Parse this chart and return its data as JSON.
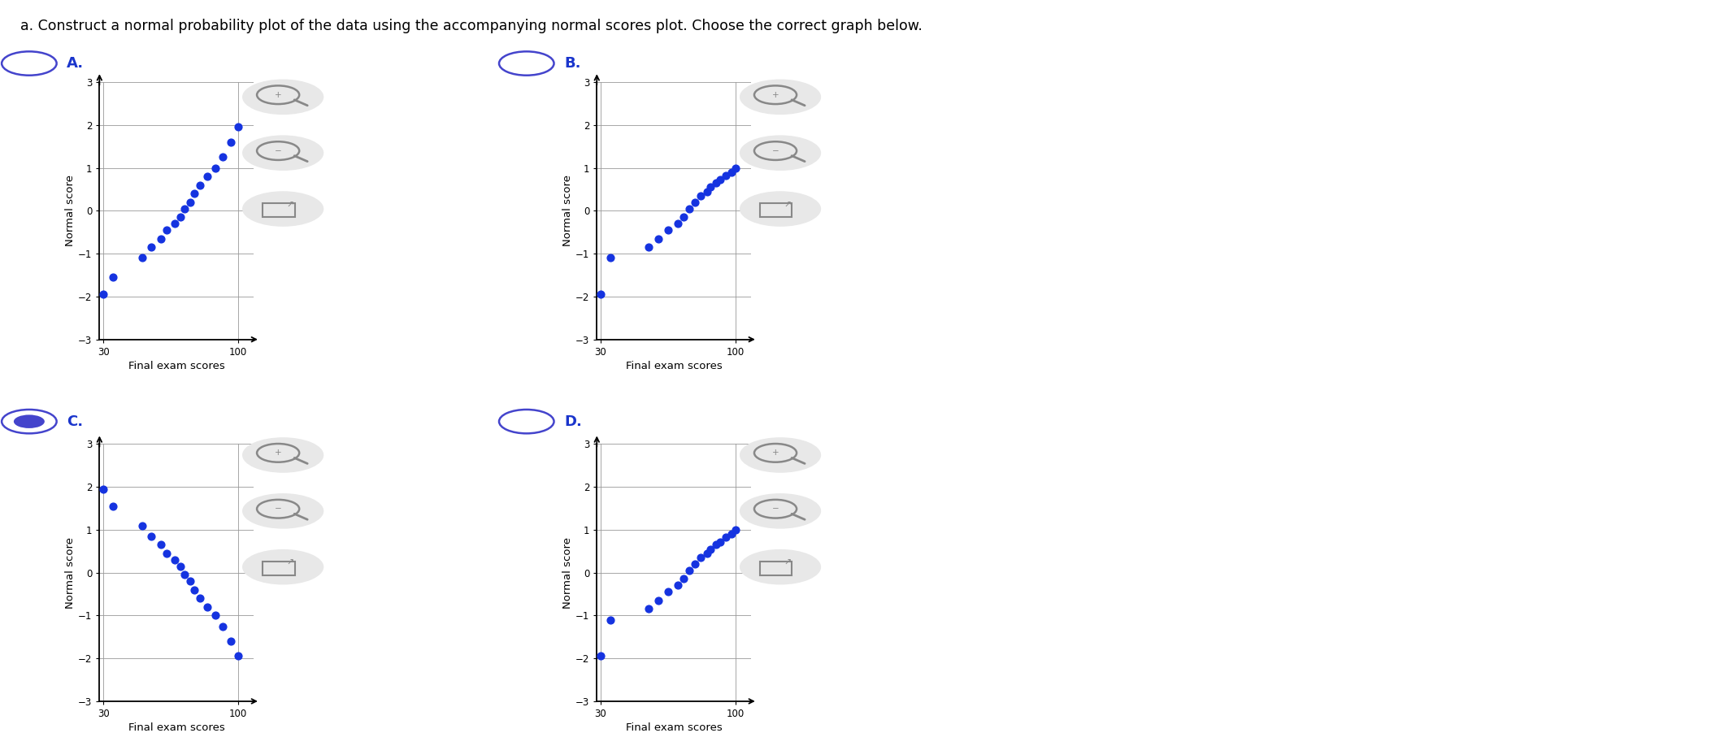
{
  "title": "a. Construct a normal probability plot of the data using the accompanying normal scores plot. Choose the correct graph below.",
  "title_fontsize": 12.5,
  "panels": [
    {
      "label": "A.",
      "selected": false,
      "xlabel": "Final exam scores",
      "ylabel": "Normal score",
      "xlim": [
        28,
        108
      ],
      "ylim": [
        -3,
        3
      ],
      "xticks": [
        30,
        100
      ],
      "yticks": [
        -3,
        -2,
        -1,
        0,
        1,
        2,
        3
      ],
      "x": [
        30,
        35,
        50,
        55,
        60,
        63,
        67,
        70,
        72,
        75,
        77,
        80,
        84,
        88,
        92,
        96,
        100
      ],
      "y": [
        -1.95,
        -1.55,
        -1.1,
        -0.85,
        -0.65,
        -0.45,
        -0.3,
        -0.15,
        0.05,
        0.2,
        0.4,
        0.6,
        0.8,
        1.0,
        1.25,
        1.6,
        1.95
      ]
    },
    {
      "label": "B.",
      "selected": false,
      "xlabel": "Final exam scores",
      "ylabel": "Normal score",
      "xlim": [
        28,
        108
      ],
      "ylim": [
        -3,
        3
      ],
      "xticks": [
        30,
        100
      ],
      "yticks": [
        -3,
        -2,
        -1,
        0,
        1,
        2,
        3
      ],
      "x": [
        30,
        35,
        55,
        60,
        65,
        70,
        73,
        76,
        79,
        82,
        85,
        87,
        90,
        92,
        95,
        98,
        100
      ],
      "y": [
        -1.95,
        -1.1,
        -0.85,
        -0.65,
        -0.45,
        -0.3,
        -0.15,
        0.05,
        0.2,
        0.35,
        0.45,
        0.55,
        0.65,
        0.72,
        0.82,
        0.9,
        1.0
      ]
    },
    {
      "label": "C.",
      "selected": true,
      "xlabel": "Final exam scores",
      "ylabel": "Normal score",
      "xlim": [
        28,
        108
      ],
      "ylim": [
        -3,
        3
      ],
      "xticks": [
        30,
        100
      ],
      "yticks": [
        -3,
        -2,
        -1,
        0,
        1,
        2,
        3
      ],
      "x": [
        30,
        35,
        50,
        55,
        60,
        63,
        67,
        70,
        72,
        75,
        77,
        80,
        84,
        88,
        92,
        96,
        100
      ],
      "y": [
        1.95,
        1.55,
        1.1,
        0.85,
        0.65,
        0.45,
        0.3,
        0.15,
        -0.05,
        -0.2,
        -0.4,
        -0.6,
        -0.8,
        -1.0,
        -1.25,
        -1.6,
        -1.95
      ]
    },
    {
      "label": "D.",
      "selected": false,
      "xlabel": "Final exam scores",
      "ylabel": "Normal score",
      "xlim": [
        28,
        108
      ],
      "ylim": [
        -3,
        3
      ],
      "xticks": [
        30,
        100
      ],
      "yticks": [
        -3,
        -2,
        -1,
        0,
        1,
        2,
        3
      ],
      "x": [
        30,
        35,
        55,
        60,
        65,
        70,
        73,
        76,
        79,
        82,
        85,
        87,
        90,
        92,
        95,
        98,
        100
      ],
      "y": [
        -1.95,
        -1.1,
        -0.85,
        -0.65,
        -0.45,
        -0.3,
        -0.15,
        0.05,
        0.2,
        0.35,
        0.45,
        0.55,
        0.65,
        0.72,
        0.82,
        0.9,
        1.0
      ]
    }
  ],
  "dot_color": "#1533e0",
  "dot_size": 40,
  "label_color": "#1a35cc",
  "label_fontsize": 13,
  "radio_color": "#4444cc",
  "axis_label_fontsize": 9.5,
  "tick_fontsize": 8.5,
  "bg_color": "#ffffff",
  "grid_color": "#999999",
  "icon_gray": "#888888",
  "icon_bg": "#e8e8e8"
}
